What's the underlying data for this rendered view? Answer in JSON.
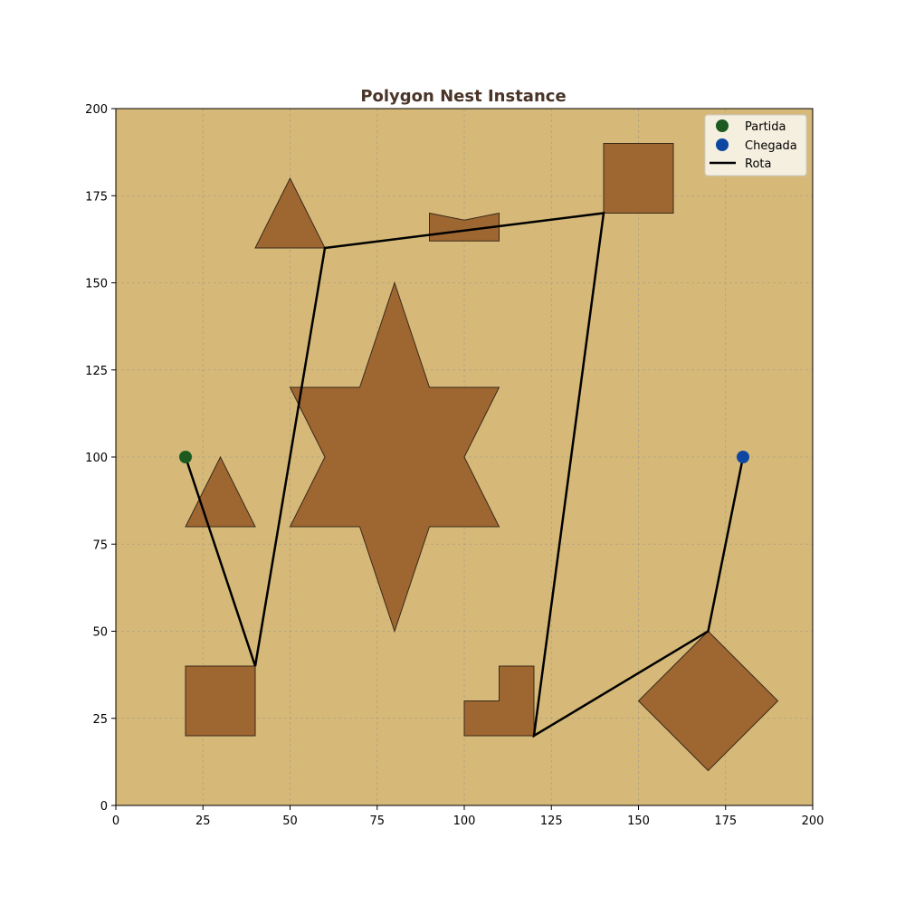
{
  "chart_data": {
    "type": "scatter",
    "title": "Polygon Nest Instance",
    "xlabel": "",
    "ylabel": "",
    "xlim": [
      0,
      200
    ],
    "ylim": [
      0,
      200
    ],
    "xticks": [
      0,
      25,
      50,
      75,
      100,
      125,
      150,
      175,
      200
    ],
    "yticks": [
      0,
      25,
      50,
      75,
      100,
      125,
      150,
      175,
      200
    ],
    "grid": true,
    "legend_position": "top-right",
    "colors": {
      "background": "#d6b978",
      "obstacle_fill": "#9e6631",
      "obstacle_edge": "#3a2a1a",
      "start": "#1c5a20",
      "goal": "#0d47a1",
      "route": "#000000",
      "grid": "#b0a080",
      "title": "#4a3428"
    },
    "legend": [
      {
        "label": "Partida",
        "kind": "start-marker"
      },
      {
        "label": "Chegada",
        "kind": "goal-marker"
      },
      {
        "label": "Rota",
        "kind": "route-line"
      }
    ],
    "start": [
      20,
      100
    ],
    "goal": [
      180,
      100
    ],
    "route": [
      [
        20,
        100
      ],
      [
        40,
        40
      ],
      [
        60,
        160
      ],
      [
        140,
        170
      ],
      [
        120,
        20
      ],
      [
        170,
        50
      ],
      [
        180,
        100
      ]
    ],
    "obstacles": [
      {
        "name": "triangle-top",
        "points": [
          [
            40,
            160
          ],
          [
            60,
            160
          ],
          [
            50,
            180
          ]
        ]
      },
      {
        "name": "bowtie-top",
        "points": [
          [
            90,
            162
          ],
          [
            110,
            162
          ],
          [
            110,
            170
          ],
          [
            100,
            168
          ],
          [
            90,
            170
          ]
        ]
      },
      {
        "name": "square-top-right",
        "points": [
          [
            140,
            170
          ],
          [
            160,
            170
          ],
          [
            160,
            190
          ],
          [
            140,
            190
          ]
        ]
      },
      {
        "name": "star-center",
        "points": [
          [
            80,
            150
          ],
          [
            90,
            120
          ],
          [
            110,
            120
          ],
          [
            100,
            100
          ],
          [
            110,
            80
          ],
          [
            90,
            80
          ],
          [
            80,
            50
          ],
          [
            70,
            80
          ],
          [
            50,
            80
          ],
          [
            60,
            100
          ],
          [
            50,
            120
          ],
          [
            70,
            120
          ]
        ]
      },
      {
        "name": "triangle-left",
        "points": [
          [
            20,
            80
          ],
          [
            40,
            80
          ],
          [
            30,
            100
          ]
        ]
      },
      {
        "name": "square-bottom-left",
        "points": [
          [
            20,
            20
          ],
          [
            40,
            20
          ],
          [
            40,
            40
          ],
          [
            20,
            40
          ]
        ]
      },
      {
        "name": "l-shape-bottom",
        "points": [
          [
            100,
            20
          ],
          [
            120,
            20
          ],
          [
            120,
            40
          ],
          [
            110,
            40
          ],
          [
            110,
            30
          ],
          [
            100,
            30
          ]
        ]
      },
      {
        "name": "diamond-bottom-right",
        "points": [
          [
            170,
            10
          ],
          [
            190,
            30
          ],
          [
            170,
            50
          ],
          [
            150,
            30
          ]
        ]
      }
    ]
  }
}
